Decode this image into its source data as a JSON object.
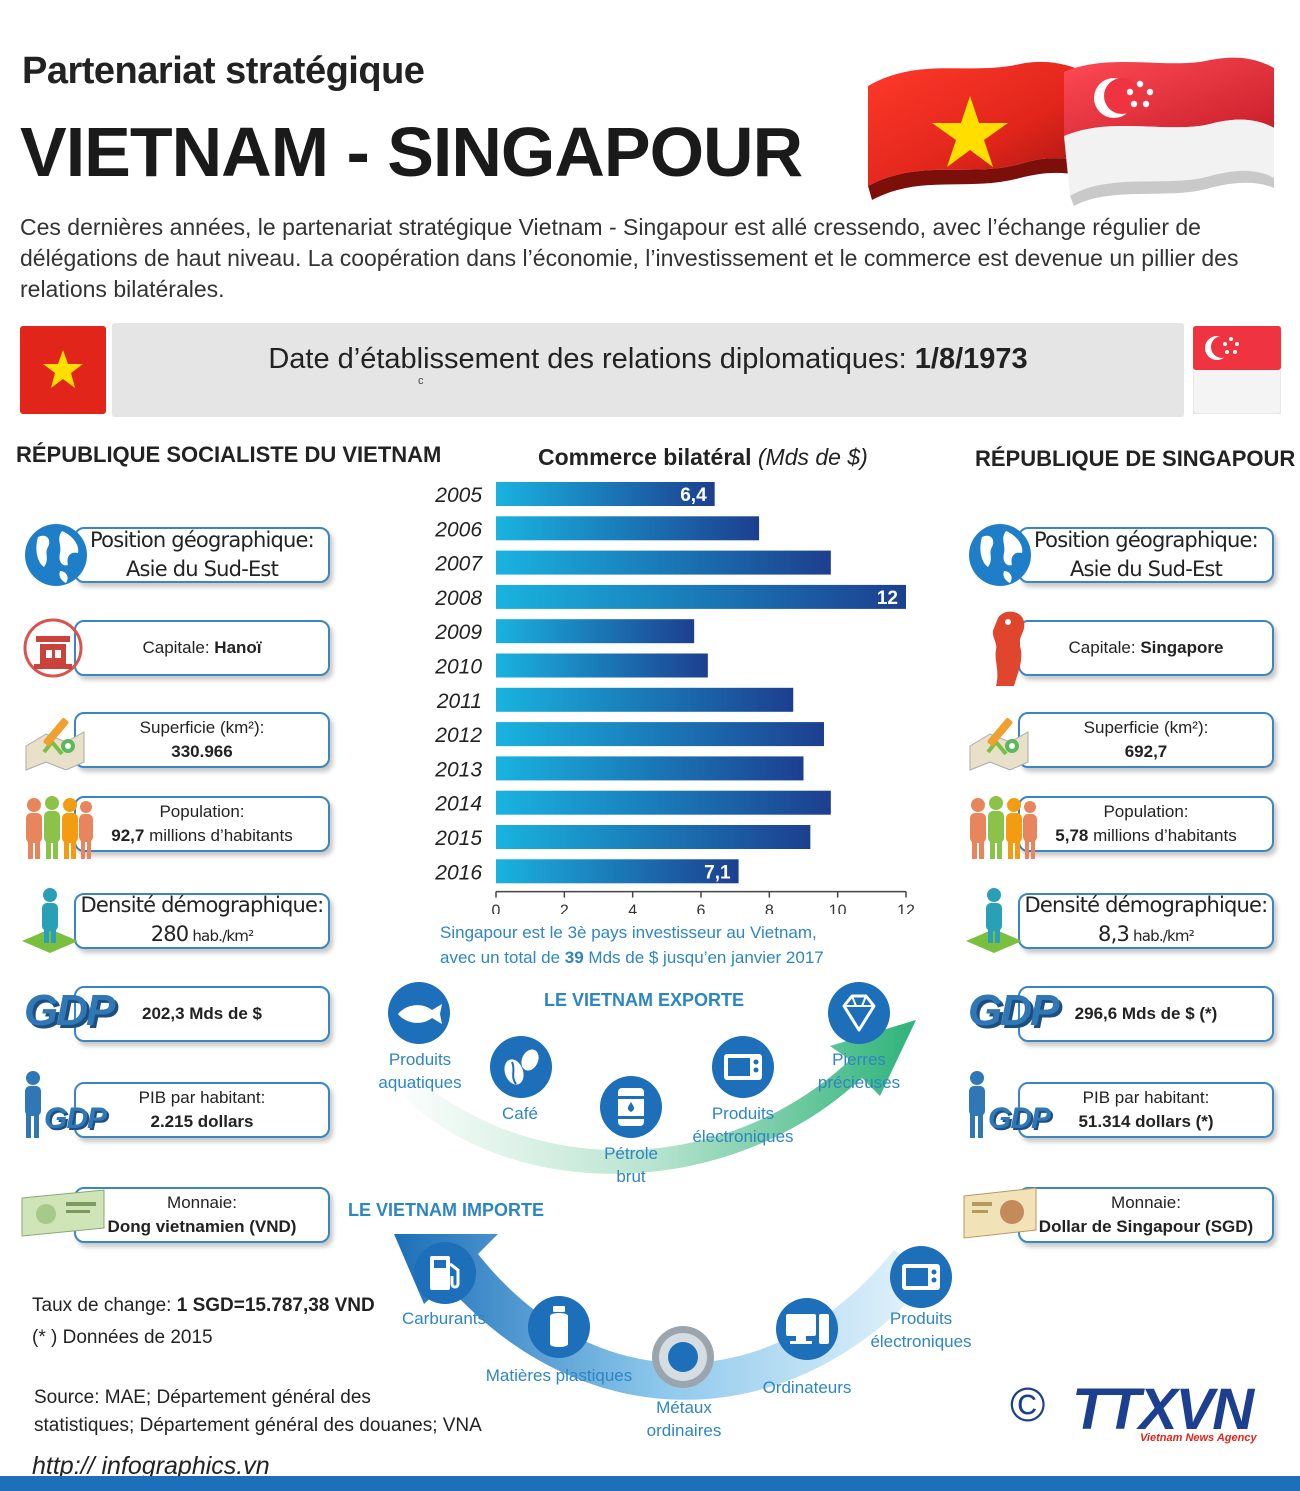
{
  "header": {
    "subtitle": "Partenariat stratégique",
    "title": "VIETNAM - SINGAPOUR",
    "intro": "Ces dernières années, le partenariat stratégique Vietnam - Singapour est allé cressendo, avec l’échange régulier de délégations de haut niveau. La coopération dans l’économie, l’investissement et le commerce est devenue un pillier des relations bilatérales."
  },
  "date_bar": {
    "label": "Date d’établissement des relations diplomatiques: ",
    "date": "1/8/1973",
    "stray_mark": "c"
  },
  "vietnam": {
    "heading": "RÉPUBLIQUE SOCIALISTE DU VIETNAM",
    "position_label": "Position géographique:",
    "position_value": "Asie du Sud-Est",
    "capital_label": "Capitale: ",
    "capital_value": "Hanoï",
    "area_label": "Superficie (km²):",
    "area_value": "330.966",
    "population_label": "Population:",
    "population_value": "92,7",
    "population_unit": " millions d’habitants",
    "density_label": "Densité démographique:",
    "density_value": "280",
    "density_unit": " hab./km²",
    "gdp_value": "202,3 Mds de $",
    "gdp_per_capita_label": "PIB par habitant:",
    "gdp_per_capita_value": "2.215 dollars",
    "currency_label": "Monnaie:",
    "currency_value": "Dong vietnamien (VND)"
  },
  "singapore": {
    "heading": "RÉPUBLIQUE DE SINGAPOUR",
    "position_label": "Position géographique:",
    "position_value": "Asie du Sud-Est",
    "capital_label": "Capitale: ",
    "capital_value": "Singapore",
    "area_label": "Superficie (km²):",
    "area_value": "692,7",
    "population_label": "Population:",
    "population_value": "5,78",
    "population_unit": " millions d’habitants",
    "density_label": "Densité démographique:",
    "density_value": "8,3",
    "density_unit": " hab./km²",
    "gdp_value": "296,6 Mds de $ (*)",
    "gdp_per_capita_label": "PIB par habitant:",
    "gdp_per_capita_value": "51.314 dollars (*)",
    "currency_label": "Monnaie:",
    "currency_value": "Dollar de Singapour (SGD)"
  },
  "icons": {
    "gdp_text": "GDP"
  },
  "chart_data": {
    "type": "bar",
    "orientation": "horizontal",
    "title": "Commerce bilatéral",
    "unit": "(Mds de $)",
    "categories": [
      "2005",
      "2006",
      "2007",
      "2008",
      "2009",
      "2010",
      "2011",
      "2012",
      "2013",
      "2014",
      "2015",
      "2016"
    ],
    "values": [
      6.4,
      7.7,
      9.8,
      12,
      5.8,
      6.2,
      8.7,
      9.6,
      9.0,
      9.8,
      9.2,
      7.1
    ],
    "data_labels": [
      "6,4",
      "",
      "",
      "12",
      "",
      "",
      "",
      "",
      "",
      "",
      "",
      "7,1"
    ],
    "x_ticks": [
      "0",
      "2",
      "4",
      "6",
      "8",
      "10",
      "12"
    ],
    "xlim": [
      0,
      12
    ],
    "grid": false,
    "bar_color_start": "#19b3e0",
    "bar_color_end": "#1c3f8f"
  },
  "investment_note": {
    "line1": "Singapour est le 3è pays investisseur au Vietnam,",
    "line2_pre": "avec un total de ",
    "line2_value": "39",
    "line2_post": " Mds de $ jusqu’en janvier 2017"
  },
  "exports": {
    "heading": "LE VIETNAM EXPORTE",
    "items": [
      {
        "label1": "Produits",
        "label2": "aquatiques",
        "icon": "fish-icon"
      },
      {
        "label1": "Café",
        "label2": "",
        "icon": "coffee-bean-icon"
      },
      {
        "label1": "Pétrole",
        "label2": "brut",
        "icon": "oil-barrel-icon"
      },
      {
        "label1": "Produits",
        "label2": "électroniques",
        "icon": "electronics-icon"
      },
      {
        "label1": "Pierres",
        "label2": "précieuses",
        "icon": "diamond-icon"
      }
    ]
  },
  "imports": {
    "heading": "LE VIETNAM IMPORTE",
    "items": [
      {
        "label1": "Carburants",
        "label2": "",
        "icon": "fuel-pump-icon"
      },
      {
        "label1": "Matières plastiques",
        "label2": "",
        "icon": "plastic-bottle-icon"
      },
      {
        "label1": "Métaux",
        "label2": "ordinaires",
        "icon": "metal-ring-icon"
      },
      {
        "label1": "Ordinateurs",
        "label2": "",
        "icon": "computer-icon"
      },
      {
        "label1": "Produits",
        "label2": "électroniques",
        "icon": "electronics-icon"
      }
    ]
  },
  "footer": {
    "exchange_label": "Taux de change: ",
    "exchange_value": "1 SGD=15.787,38 VND",
    "note": "(* ) Données de 2015",
    "source_line1": "Source: MAE; Département général des",
    "source_line2": "statistiques; Département général des douanes; VNA",
    "url": "http:// infographics.vn",
    "copyright": "©",
    "agency_logo": "TTXVN",
    "agency_sub": "Vietnam News Agency"
  },
  "colors": {
    "accent_blue": "#2e86c1",
    "vietnam_red": "#e1251b",
    "vietnam_star": "#ffde00",
    "singapore_red": "#ef3340",
    "footer_blue": "#1c6fb8"
  }
}
